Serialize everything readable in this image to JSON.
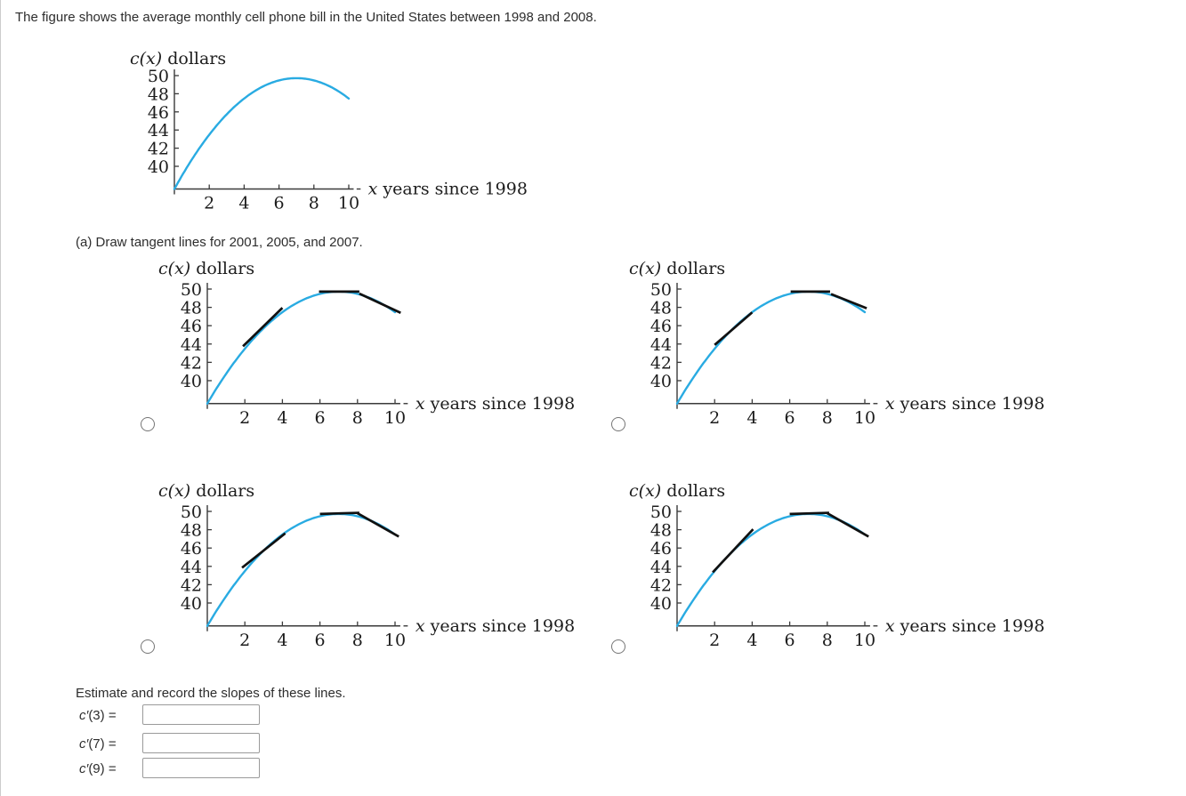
{
  "title": "The figure shows the average monthly cell phone bill in the United States between 1998 and 2008.",
  "part_a_prompt": "(a) Draw tangent lines for 2001, 2005, and 2007.",
  "estimate_prompt": "Estimate and record the slopes of these lines.",
  "fields": [
    {
      "var": "c′",
      "arg": "(3)",
      "eq": "=",
      "value": ""
    },
    {
      "var": "c′",
      "arg": "(7)",
      "eq": "=",
      "value": ""
    },
    {
      "var": "c′",
      "arg": "(9)",
      "eq": "=",
      "value": ""
    }
  ],
  "colors": {
    "curve": "#29abe2",
    "tangent": "#111111",
    "axis": "#3a3a3a",
    "figure_text": "#1c1c1c",
    "body_text": "#2d2d2d",
    "radio_border": "#757575",
    "input_border": "#9a9a9a"
  },
  "chart_data": {
    "type": "line",
    "title": "",
    "ylabel": "c(x) dollars",
    "ylabel_italic": "c(x)",
    "ylabel_rest": " dollars",
    "xlabel": "x years since 1998",
    "xlabel_italic": "x",
    "xlabel_rest": " years since 1998",
    "x_ticks": [
      2,
      4,
      6,
      8,
      10
    ],
    "y_ticks": [
      50,
      48,
      46,
      44,
      42,
      40
    ],
    "xlim": [
      0,
      10.7
    ],
    "ylim": [
      37.5,
      50.6
    ],
    "origin_value": 37.5,
    "grid": false,
    "curve": {
      "model": "parabola c(x) = vertex_y - a*(x - vertex_x)^2",
      "vertex_x": 7,
      "vertex_y": 49.72,
      "a": 0.2494,
      "x_start": 0,
      "x_end": 10.05,
      "points_sample": [
        [
          0,
          37.5
        ],
        [
          1,
          40.7
        ],
        [
          2,
          43.5
        ],
        [
          3,
          45.7
        ],
        [
          4,
          47.4
        ],
        [
          5,
          48.7
        ],
        [
          6,
          49.5
        ],
        [
          7,
          49.7
        ],
        [
          8,
          49.5
        ],
        [
          9,
          48.7
        ],
        [
          10,
          47.5
        ]
      ]
    },
    "figures": [
      {
        "key": "main",
        "segments": []
      },
      {
        "key": "option-1",
        "segments": [
          [
            [
              1.9,
              43.75
            ],
            [
              4.0,
              47.95
            ]
          ],
          [
            [
              5.95,
              49.72
            ],
            [
              8.1,
              49.72
            ]
          ],
          [
            [
              8.1,
              49.5
            ],
            [
              10.3,
              47.4
            ]
          ]
        ]
      },
      {
        "key": "option-2",
        "segments": [
          [
            [
              2.0,
              43.9
            ],
            [
              4.0,
              47.45
            ]
          ],
          [
            [
              6.05,
              49.72
            ],
            [
              8.15,
              49.72
            ]
          ],
          [
            [
              8.2,
              49.45
            ],
            [
              10.1,
              47.9
            ]
          ]
        ]
      },
      {
        "key": "option-3",
        "segments": [
          [
            [
              1.85,
              43.85
            ],
            [
              4.15,
              47.6
            ]
          ],
          [
            [
              6.0,
              49.72
            ],
            [
              8.1,
              49.85
            ]
          ],
          [
            [
              8.0,
              49.8
            ],
            [
              10.2,
              47.25
            ]
          ]
        ]
      },
      {
        "key": "option-4",
        "segments": [
          [
            [
              1.9,
              43.35
            ],
            [
              4.05,
              48.05
            ]
          ],
          [
            [
              6.0,
              49.72
            ],
            [
              8.1,
              49.85
            ]
          ],
          [
            [
              8.0,
              49.8
            ],
            [
              10.2,
              47.25
            ]
          ]
        ]
      }
    ]
  }
}
